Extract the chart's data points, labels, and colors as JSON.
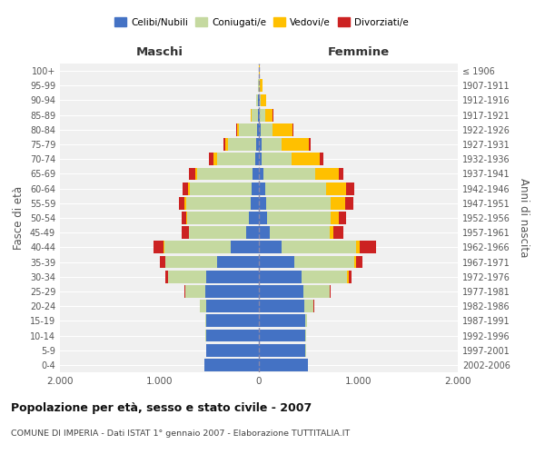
{
  "age_groups": [
    "0-4",
    "5-9",
    "10-14",
    "15-19",
    "20-24",
    "25-29",
    "30-34",
    "35-39",
    "40-44",
    "45-49",
    "50-54",
    "55-59",
    "60-64",
    "65-69",
    "70-74",
    "75-79",
    "80-84",
    "85-89",
    "90-94",
    "95-99",
    "100+"
  ],
  "birth_years": [
    "2002-2006",
    "1997-2001",
    "1992-1996",
    "1987-1991",
    "1982-1986",
    "1977-1981",
    "1972-1976",
    "1967-1971",
    "1962-1966",
    "1957-1961",
    "1952-1956",
    "1947-1951",
    "1942-1946",
    "1937-1941",
    "1932-1936",
    "1927-1931",
    "1922-1926",
    "1917-1921",
    "1912-1916",
    "1907-1911",
    "≤ 1906"
  ],
  "males": {
    "celibe": [
      550,
      530,
      530,
      530,
      530,
      540,
      530,
      420,
      280,
      130,
      100,
      80,
      70,
      60,
      40,
      30,
      20,
      10,
      5,
      2,
      0
    ],
    "coniugato": [
      0,
      2,
      5,
      10,
      60,
      200,
      380,
      520,
      670,
      570,
      620,
      650,
      620,
      560,
      380,
      280,
      180,
      60,
      20,
      5,
      0
    ],
    "vedovo": [
      0,
      0,
      0,
      0,
      2,
      2,
      5,
      5,
      5,
      5,
      10,
      15,
      20,
      20,
      40,
      30,
      20,
      10,
      5,
      2,
      0
    ],
    "divorziato": [
      0,
      0,
      0,
      0,
      2,
      5,
      30,
      50,
      100,
      70,
      50,
      60,
      60,
      60,
      40,
      20,
      5,
      0,
      0,
      0,
      0
    ]
  },
  "females": {
    "nubile": [
      490,
      470,
      470,
      470,
      460,
      450,
      430,
      360,
      230,
      110,
      80,
      70,
      60,
      50,
      30,
      25,
      20,
      10,
      5,
      2,
      0
    ],
    "coniugata": [
      0,
      2,
      5,
      15,
      90,
      260,
      460,
      600,
      750,
      600,
      640,
      650,
      620,
      520,
      300,
      200,
      120,
      50,
      15,
      5,
      0
    ],
    "vedova": [
      0,
      0,
      0,
      0,
      2,
      5,
      10,
      15,
      30,
      40,
      80,
      150,
      200,
      230,
      280,
      280,
      200,
      80,
      50,
      25,
      5
    ],
    "divorziata": [
      0,
      0,
      0,
      0,
      2,
      10,
      30,
      70,
      170,
      100,
      80,
      80,
      80,
      50,
      40,
      20,
      10,
      2,
      0,
      0,
      0
    ]
  },
  "colors": {
    "celibe": "#4472c4",
    "coniugato": "#c5d9a0",
    "vedovo": "#ffc000",
    "divorziato": "#cc2222"
  },
  "xlim": 2000,
  "title": "Popolazione per età, sesso e stato civile - 2007",
  "subtitle": "COMUNE DI IMPERIA - Dati ISTAT 1° gennaio 2007 - Elaborazione TUTTITALIA.IT",
  "ylabel_left": "Fasce di età",
  "ylabel_right": "Anni di nascita",
  "xlabel_left": "Maschi",
  "xlabel_right": "Femmine",
  "legend_labels": [
    "Celibi/Nubili",
    "Coniugati/e",
    "Vedovi/e",
    "Divorziati/e"
  ],
  "background_color": "#f0f0f0"
}
